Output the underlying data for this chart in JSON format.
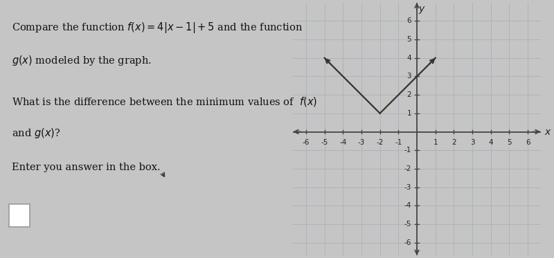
{
  "bg_color": "#c5c5c5",
  "graph_bg": "#dde3e8",
  "text_lines_1": "Compare the function $f(x) = 4|x - 1| + 5$ and the function",
  "text_lines_2": "$g(x)$ modeled by the graph.",
  "text_lines_3": "What is the difference between the minimum values of  $f(x)$",
  "text_lines_4": "and $g(x)$?",
  "text_lines_5": "Enter you answer in the box.",
  "g_vertex_x": -2,
  "g_vertex_y": 1,
  "g_left_x": -5,
  "g_left_y": 4,
  "g_right_x": 1,
  "g_right_y": 4,
  "axis_color": "#444444",
  "grid_color": "#aab4be",
  "line_color": "#333333",
  "xlim": [
    -6.7,
    6.7
  ],
  "ylim": [
    -6.7,
    7.0
  ],
  "xticks": [
    -6,
    -5,
    -4,
    -3,
    -2,
    -1,
    1,
    2,
    3,
    4,
    5,
    6
  ],
  "yticks": [
    -6,
    -5,
    -4,
    -3,
    -2,
    -1,
    1,
    2,
    3,
    4,
    5,
    6
  ],
  "tick_fontsize": 7.5,
  "label_fontsize": 10
}
